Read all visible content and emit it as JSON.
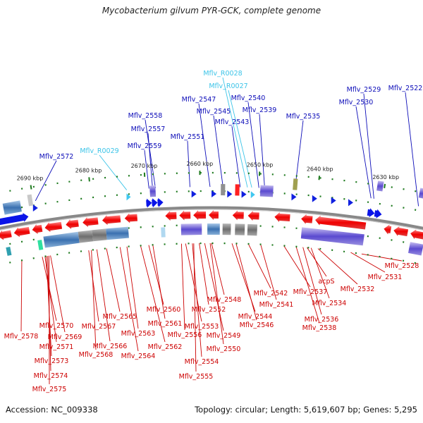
{
  "title": "Mycobacterium gilvum PYR-GCK, complete genome",
  "accession": "Accession: NC_009338",
  "topology": "Topology: circular; Length: 5,619,607 bp; Genes: 5,295",
  "colors": {
    "forward_label": "#0b0bb8",
    "rna_label": "#3cc4e8",
    "reverse_label": "#cc0000"
  },
  "scale_ticks": [
    "2630 kbp",
    "2640 kbp",
    "2650 kbp",
    "2660 kbp",
    "2670 kbp",
    "2680 kbp",
    "2690 kbp"
  ],
  "forward_labels": [
    "Mflv_2572",
    "Mflv_2559",
    "Mflv_2557",
    "Mflv_2558",
    "Mflv_2551",
    "Mflv_2547",
    "Mflv_2545",
    "Mflv_2543",
    "Mflv_2540",
    "Mflv_2539",
    "Mflv_2535",
    "Mflv_2530",
    "Mflv_2529",
    "Mflv_2522"
  ],
  "rna_labels": [
    "Mflv_R0029",
    "Mflv_R0028",
    "Mflv_R0027"
  ],
  "reverse_labels": [
    "Mflv_2578",
    "Mflv_2570",
    "Mflv_2569",
    "Mflv_2571",
    "Mflv_2573",
    "Mflv_2574",
    "Mflv_2575",
    "Mflv_2567",
    "Mflv_2565",
    "Mflv_2566",
    "Mflv_2568",
    "Mflv_2563",
    "Mflv_2564",
    "Mflv_2560",
    "Mflv_2561",
    "Mflv_2562",
    "Mflv_2552",
    "Mflv_2553",
    "Mflv_2556",
    "Mflv_2554",
    "Mflv_2555",
    "Mflv_2548",
    "Mflv_2549",
    "Mflv_2550",
    "Mflv_2546",
    "Mflv_2544",
    "Mflv_2542",
    "Mflv_2541",
    "Mflv_2537",
    "Mflv_2538",
    "Mflv_2536",
    "Mflv_2534",
    "acpS",
    "Mflv_2532",
    "Mflv_2531",
    "Mflv_2528"
  ]
}
